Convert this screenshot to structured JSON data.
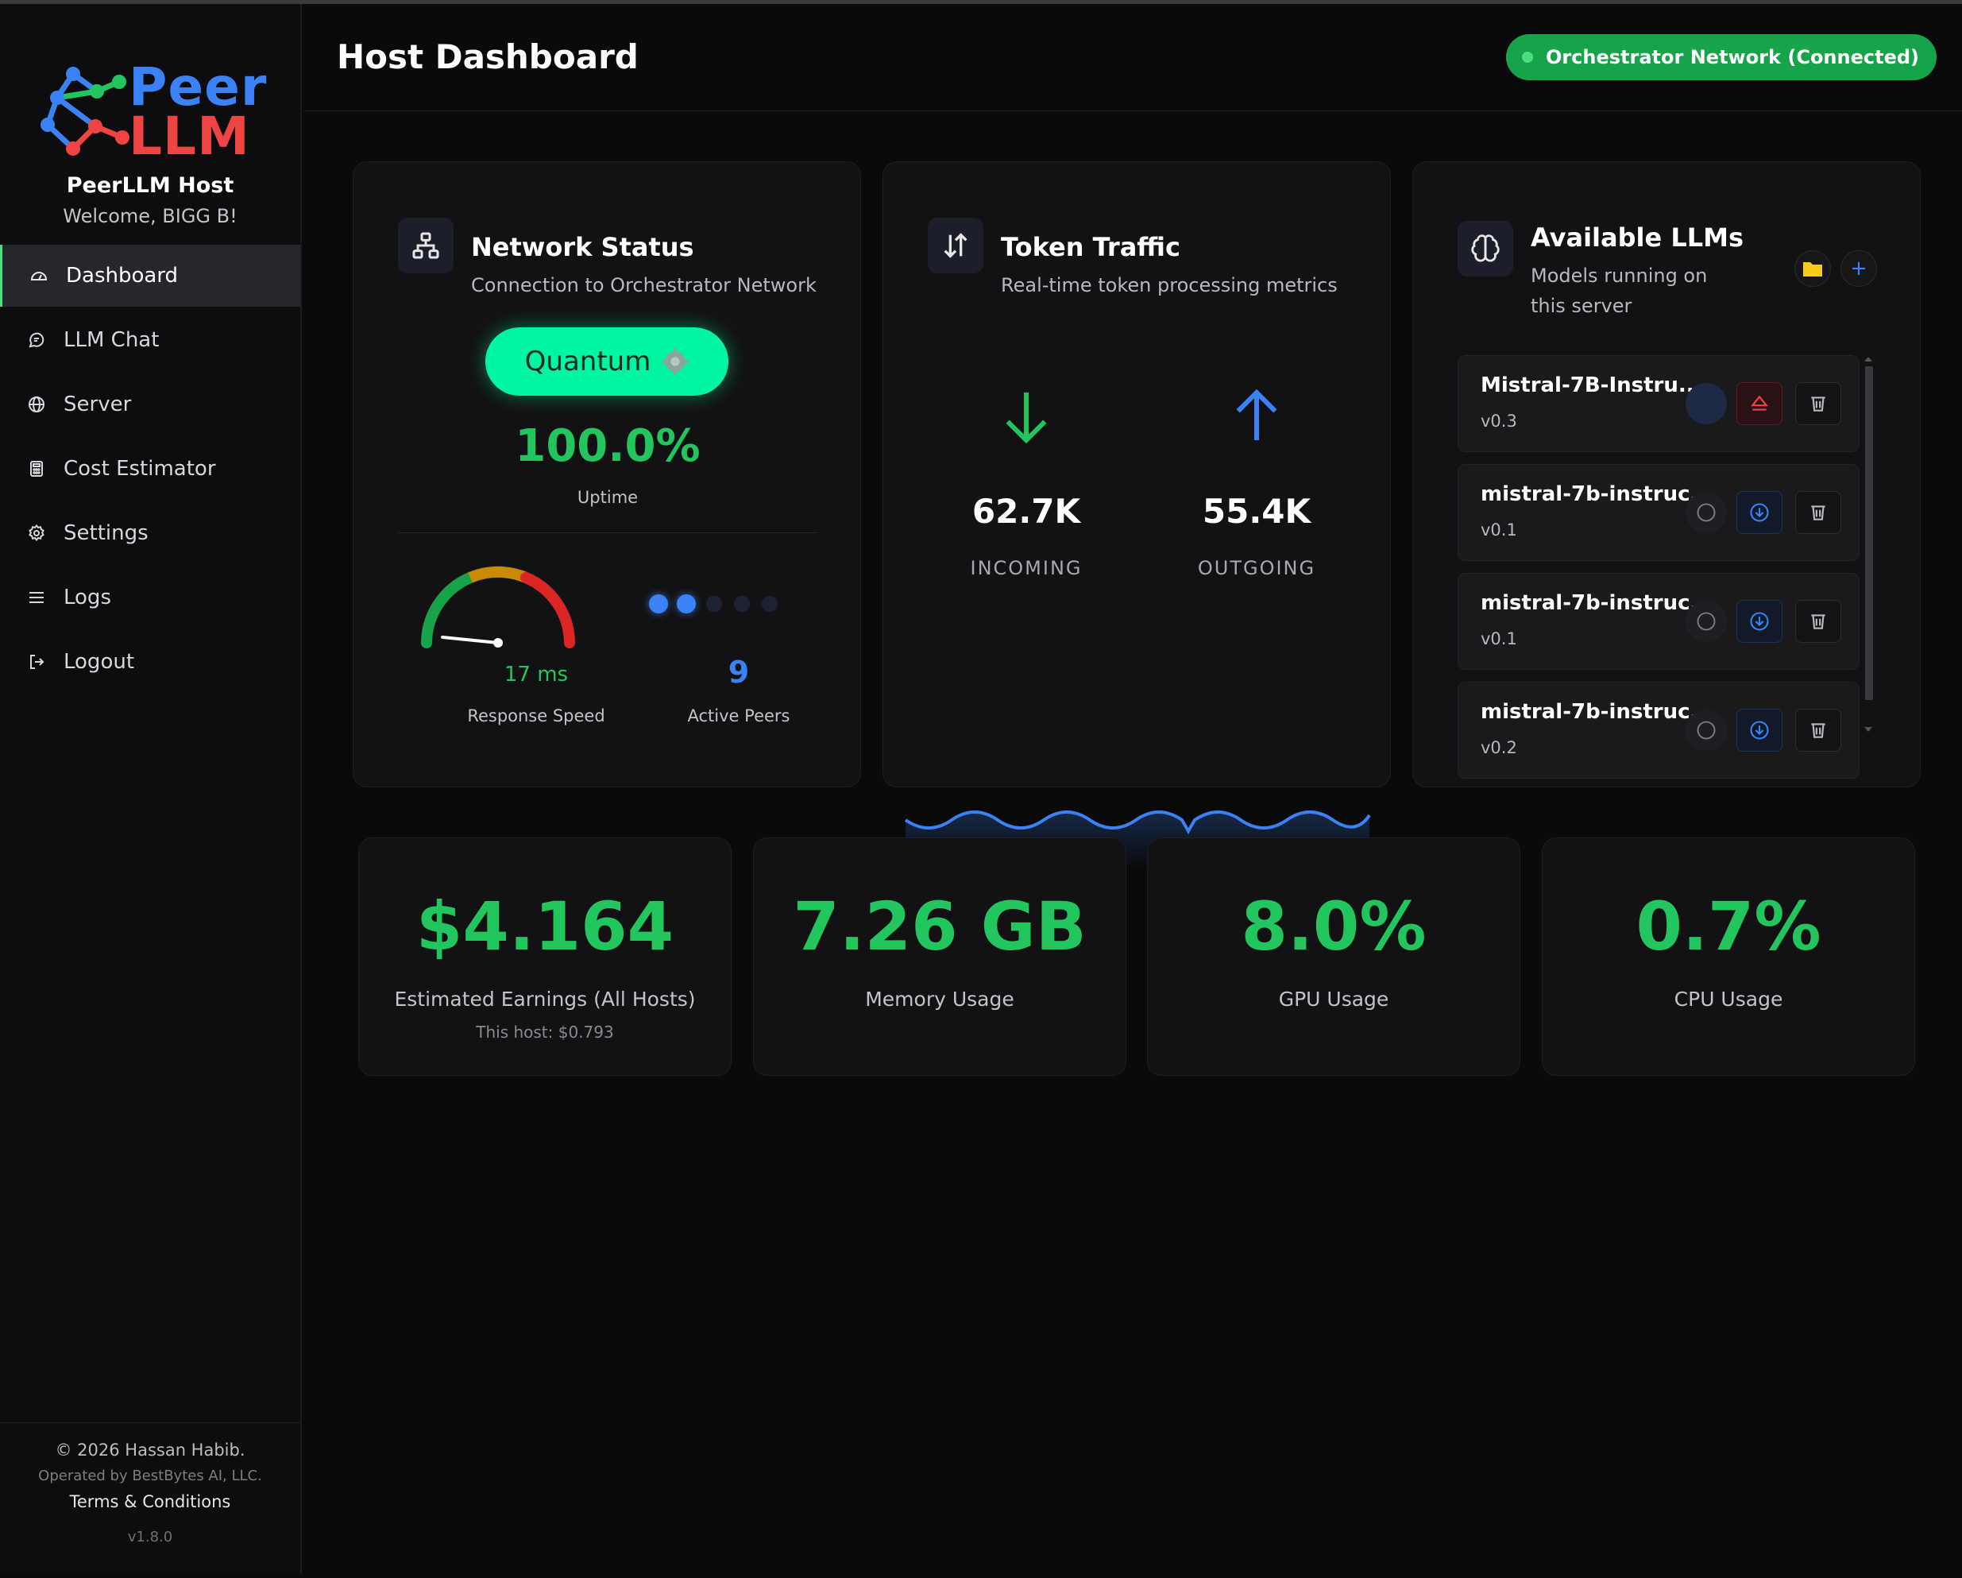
{
  "colors": {
    "accent_green": "#22c55e",
    "accent_blue": "#3b82f6",
    "danger": "#ef4444",
    "bg": "#0a0a0b",
    "card": "#121214"
  },
  "sidebar": {
    "logo_top": "Peer",
    "logo_bottom": "LLM",
    "title": "PeerLLM Host",
    "welcome": "Welcome, BIGG B!",
    "items": [
      {
        "label": "Dashboard",
        "icon": "gauge-icon"
      },
      {
        "label": "LLM Chat",
        "icon": "chat-icon"
      },
      {
        "label": "Server",
        "icon": "globe-icon"
      },
      {
        "label": "Cost Estimator",
        "icon": "calculator-icon"
      },
      {
        "label": "Settings",
        "icon": "gear-icon"
      },
      {
        "label": "Logs",
        "icon": "list-icon"
      },
      {
        "label": "Logout",
        "icon": "logout-icon"
      }
    ],
    "footer": {
      "copyright": "© 2026 Hassan Habib.",
      "operated": "Operated by BestBytes AI, LLC.",
      "terms": "Terms & Conditions",
      "version": "v1.8.0"
    }
  },
  "header": {
    "title": "Host Dashboard",
    "connection_badge": "Orchestrator Network (Connected)"
  },
  "network_status": {
    "title": "Network Status",
    "subtitle": "Connection to Orchestrator Network",
    "tier_button": "Quantum",
    "uptime": "100.0%",
    "uptime_label": "Uptime",
    "response_speed": "17 ms",
    "response_speed_label": "Response Speed",
    "active_peers": "9",
    "active_peers_label": "Active Peers",
    "peer_dots_filled": 2,
    "peer_dots_total": 5
  },
  "token_traffic": {
    "title": "Token Traffic",
    "subtitle": "Real-time token processing metrics",
    "incoming_value": "62.7K",
    "incoming_label": "INCOMING",
    "outgoing_value": "55.4K",
    "outgoing_label": "OUTGOING"
  },
  "available_llms": {
    "title": "Available LLMs",
    "subtitle": "Models running on this server",
    "models": [
      {
        "name": "Mistral-7B-Instru...",
        "version": "v0.3",
        "state": "running"
      },
      {
        "name": "mistral-7b-instruc...",
        "version": "v0.1",
        "state": "stopped"
      },
      {
        "name": "mistral-7b-instruc...",
        "version": "v0.1",
        "state": "stopped"
      },
      {
        "name": "mistral-7b-instruc...",
        "version": "v0.2",
        "state": "stopped"
      }
    ]
  },
  "stats": [
    {
      "value": "$4.164",
      "label": "Estimated Earnings (All Hosts)",
      "sub": "This host: $0.793"
    },
    {
      "value": "7.26 GB",
      "label": "Memory Usage",
      "sub": ""
    },
    {
      "value": "8.0%",
      "label": "GPU Usage",
      "sub": ""
    },
    {
      "value": "0.7%",
      "label": "CPU Usage",
      "sub": ""
    }
  ]
}
